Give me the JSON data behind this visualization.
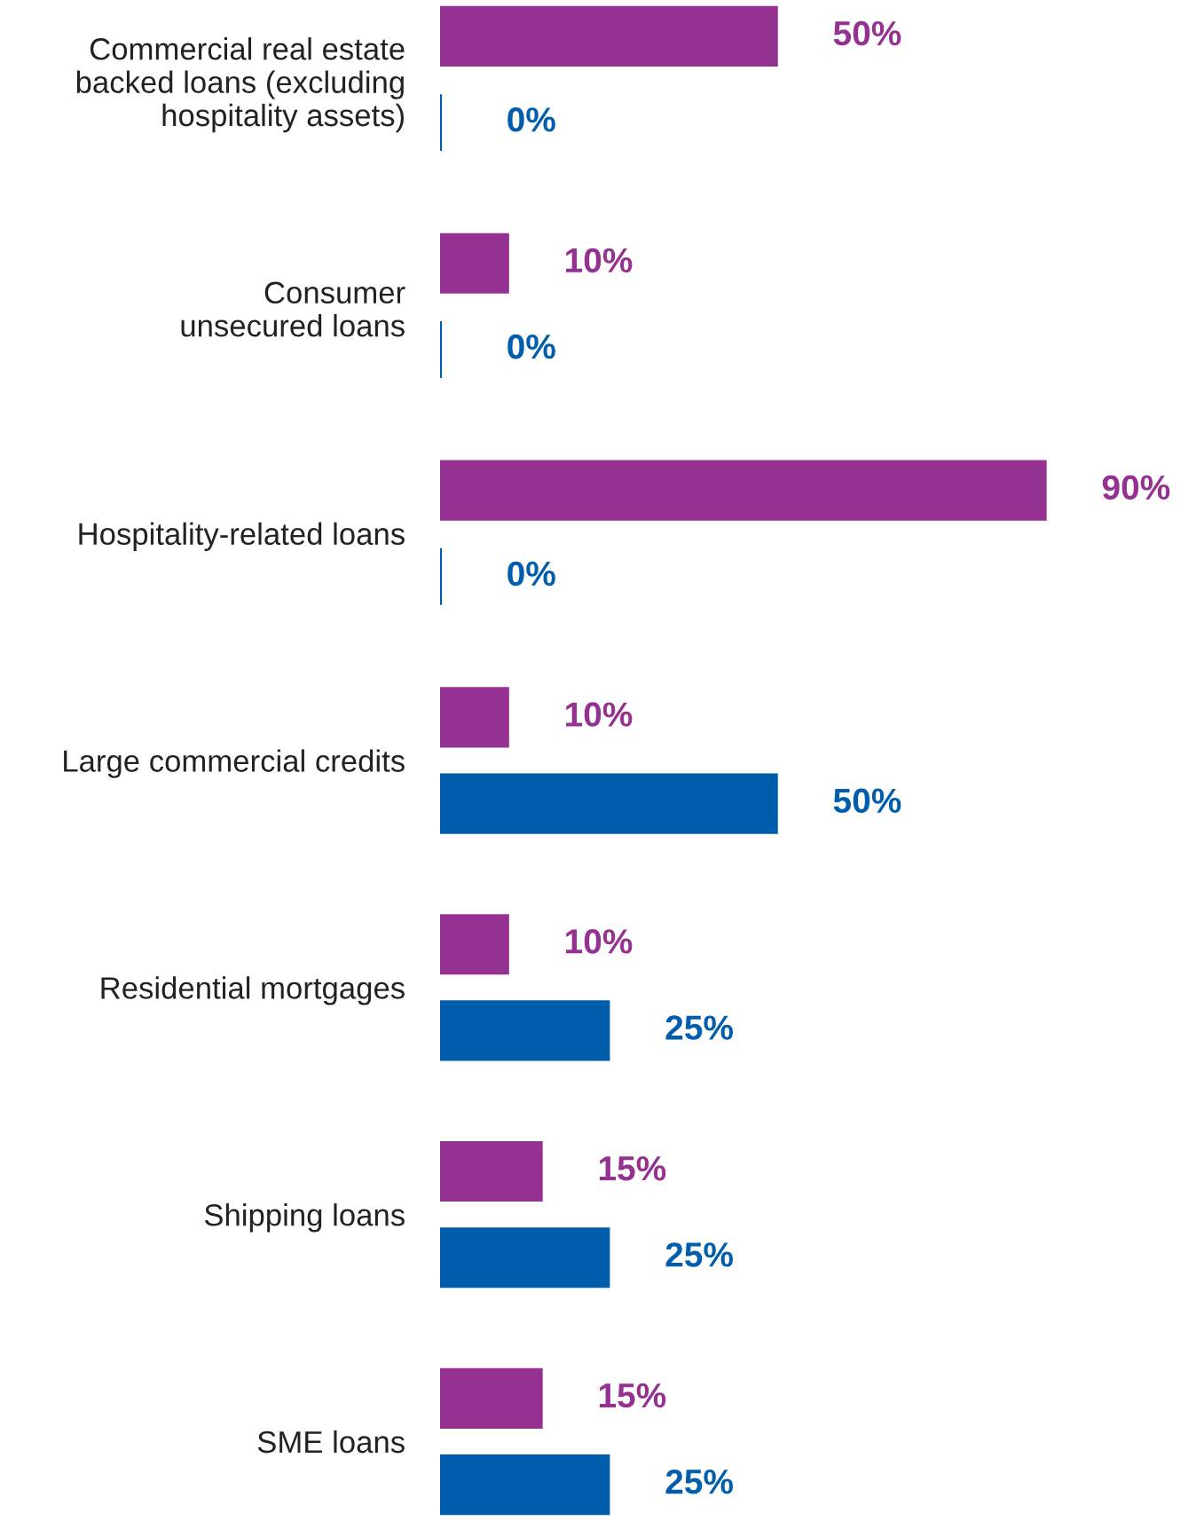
{
  "chart_data": {
    "type": "bar",
    "orientation": "horizontal",
    "categories": [
      "Commercial real estate\nbacked loans (excluding\nhospitality assets)",
      "Consumer\nunsecured loans",
      "Hospitality-related loans",
      "Large commercial credits",
      "Residential mortgages",
      "Shipping loans",
      "SME loans"
    ],
    "series": [
      {
        "color": "#943191",
        "values": [
          50,
          10,
          90,
          10,
          10,
          15,
          15
        ],
        "value_labels": [
          "50%",
          "10%",
          "90%",
          "10%",
          "10%",
          "15%",
          "15%"
        ]
      },
      {
        "color": "#005eac",
        "values": [
          0,
          0,
          0,
          50,
          25,
          25,
          25
        ],
        "value_labels": [
          "0%",
          "0%",
          "0%",
          "50%",
          "25%",
          "25%",
          "25%"
        ]
      }
    ],
    "grid": false,
    "legend": false
  }
}
